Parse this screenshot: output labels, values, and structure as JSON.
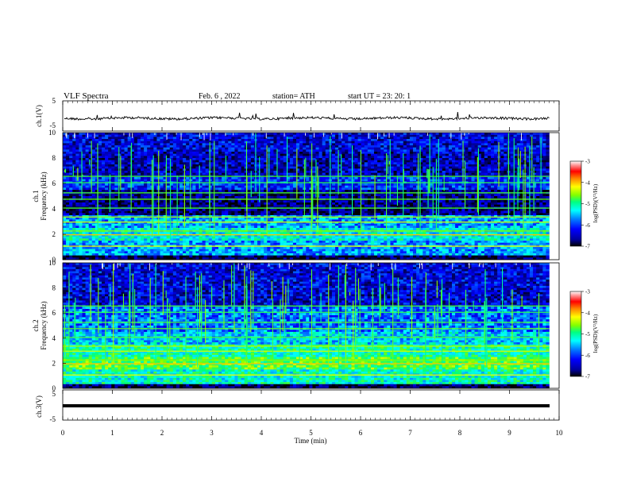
{
  "header": {
    "title": "VLF  Spectra",
    "date": "Feb. 6  , 2022",
    "station": "station= ATH",
    "start_ut": "start  UT  =    23: 20: 1"
  },
  "chart_data": [
    {
      "type": "line",
      "panel": "ch1-waveform",
      "ylabel": "ch.1(V)",
      "ylim": [
        -5,
        5
      ],
      "yticks": [
        "5",
        "-5"
      ],
      "xlim": [
        0,
        10
      ],
      "series": [
        {
          "values_description_note": "",
          "baseline": 0
        }
      ]
    },
    {
      "type": "heatmap",
      "panel": "ch1-spectrogram",
      "ylabel": "ch.1\nFrequency (kHz)",
      "ylim": [
        0,
        10
      ],
      "yticks": [
        "0",
        "2",
        "4",
        "6",
        "8",
        "10"
      ],
      "xlim": [
        0,
        10
      ],
      "colorbar": {
        "label": "log(PSD)(V²/Hz)",
        "range": [
          -7,
          -3
        ],
        "ticks": [
          "-3",
          "-4",
          "-5",
          "-6",
          "-7"
        ]
      }
    },
    {
      "type": "heatmap",
      "panel": "ch2-spectrogram",
      "ylabel": "ch.2\nFrequency (kHz)",
      "ylim": [
        0,
        10
      ],
      "yticks": [
        "0",
        "2",
        "4",
        "6",
        "8",
        "10"
      ],
      "xlim": [
        0,
        10
      ],
      "colorbar": {
        "label": "log(PSD)(V²/Hz)",
        "range": [
          -7,
          -3
        ],
        "ticks": [
          "-3",
          "-4",
          "-5",
          "-6",
          "-7"
        ]
      }
    },
    {
      "type": "line",
      "panel": "ch3-waveform",
      "ylabel": "ch.3(V)",
      "ylim": [
        -5,
        5
      ],
      "yticks": [
        "5",
        "-5"
      ],
      "xlim": [
        0,
        10
      ],
      "series": [
        {
          "baseline": 0
        }
      ]
    }
  ],
  "x_axis": {
    "label": "Time  (min)",
    "ticks": [
      "0",
      "1",
      "2",
      "3",
      "4",
      "5",
      "6",
      "7",
      "8",
      "9",
      "10"
    ],
    "range": [
      0,
      10
    ],
    "data_end": 9.8
  },
  "colormap": [
    "#000000",
    "#0000a0",
    "#0000ff",
    "#0080ff",
    "#00ffff",
    "#00ff80",
    "#80ff00",
    "#ffff00",
    "#ff8000",
    "#ff0000",
    "#ff8080",
    "#ffffff"
  ]
}
